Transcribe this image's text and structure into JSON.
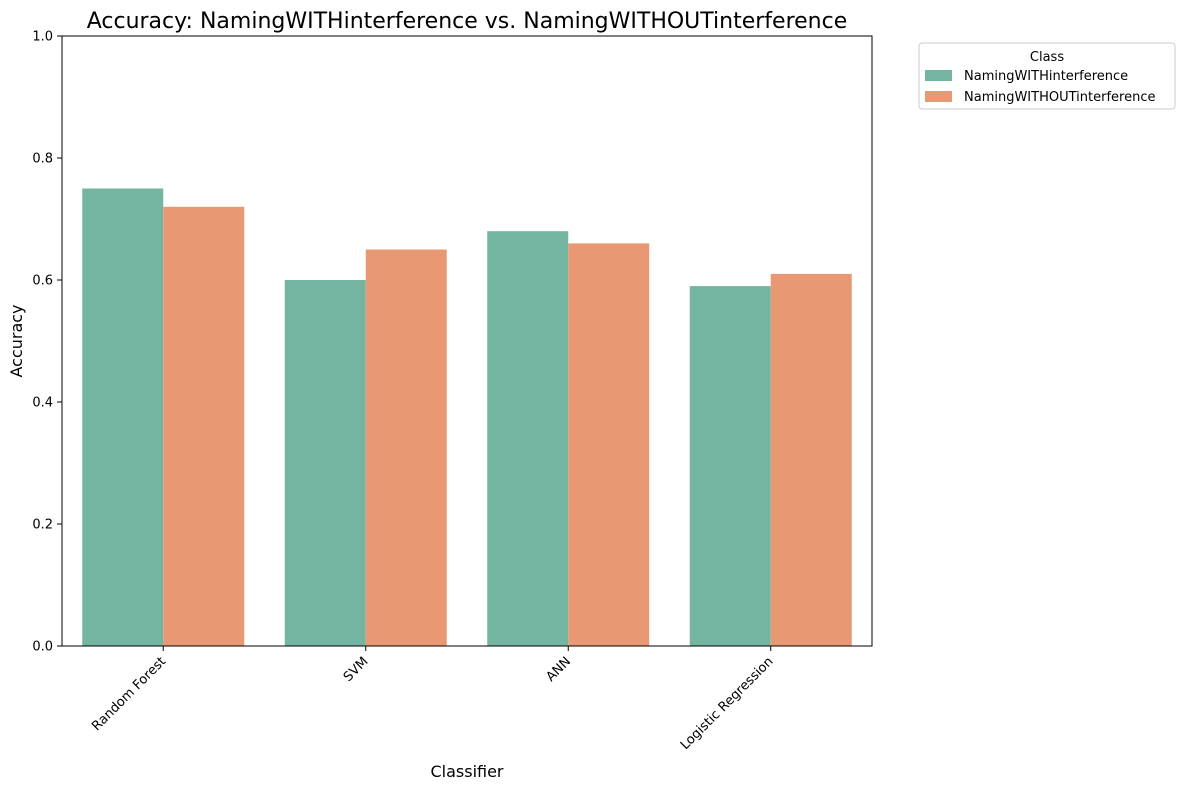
{
  "chart_data": {
    "type": "bar",
    "title": "Accuracy: NamingWITHinterference vs. NamingWITHOUTinterference",
    "xlabel": "Classifier",
    "ylabel": "Accuracy",
    "ylim": [
      0,
      1
    ],
    "yticks": [
      "0.0",
      "0.2",
      "0.4",
      "0.6",
      "0.8",
      "1.0"
    ],
    "categories": [
      "Random Forest",
      "SVM",
      "ANN",
      "Logistic Regression"
    ],
    "series": [
      {
        "name": "NamingWITHinterference",
        "color": "#73b5a0",
        "values": [
          0.75,
          0.6,
          0.68,
          0.59
        ]
      },
      {
        "name": "NamingWITHOUTinterference",
        "color": "#e89873",
        "values": [
          0.72,
          0.65,
          0.66,
          0.61
        ]
      }
    ],
    "legend": {
      "title": "Class",
      "placement": "outside-upper-right"
    },
    "grid": false
  }
}
